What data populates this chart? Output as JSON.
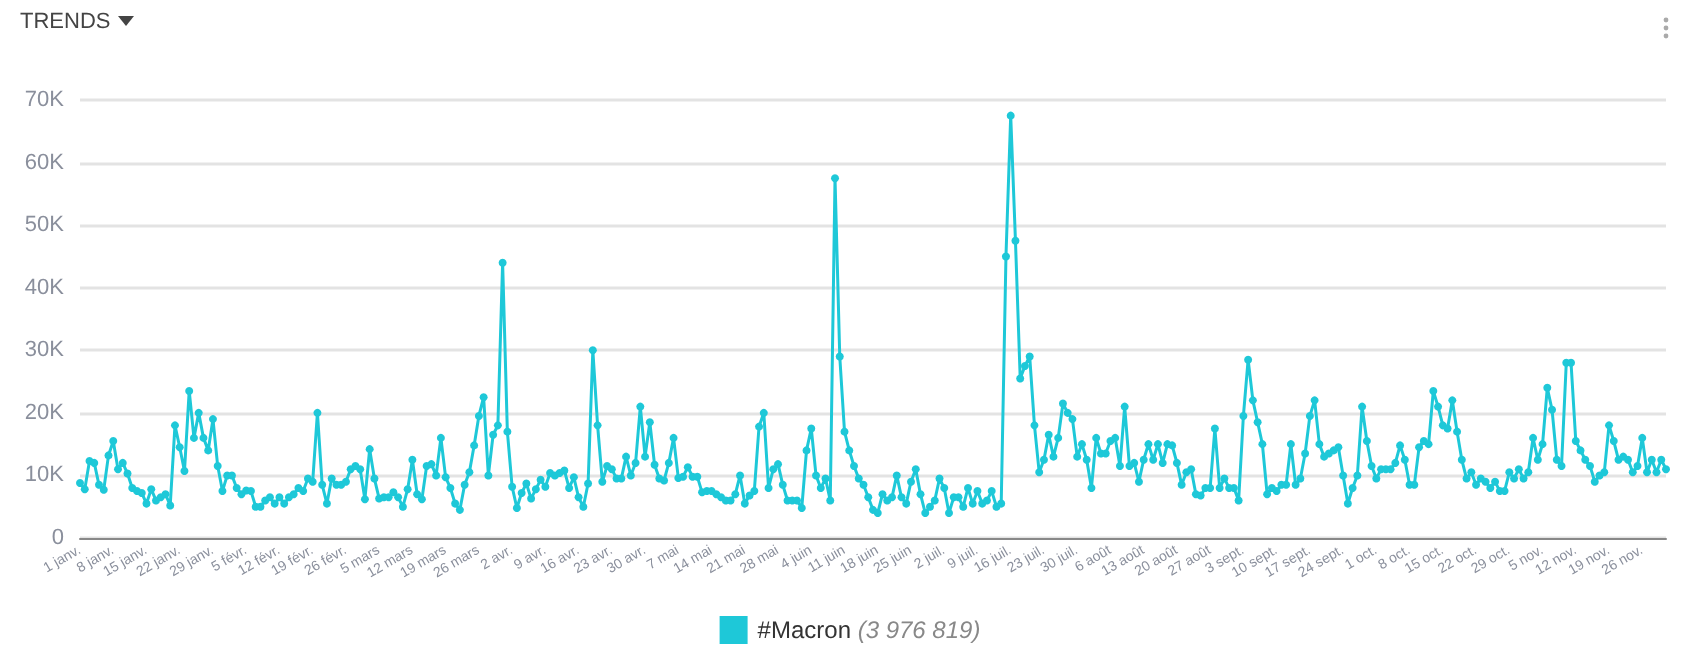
{
  "chart_data": {
    "type": "line",
    "title": "TRENDS",
    "categories": [
      "1 janv.",
      null,
      null,
      null,
      null,
      null,
      null,
      "8 janv.",
      null,
      null,
      null,
      null,
      null,
      null,
      "15 janv.",
      null,
      null,
      null,
      null,
      null,
      null,
      "22 janv.",
      null,
      null,
      null,
      null,
      null,
      null,
      "29 janv.",
      null,
      null,
      null,
      null,
      null,
      null,
      "5 févr.",
      null,
      null,
      null,
      null,
      null,
      null,
      "12 févr.",
      null,
      null,
      null,
      null,
      null,
      null,
      "19 févr.",
      null,
      null,
      null,
      null,
      null,
      null,
      "26 févr.",
      null,
      null,
      null,
      null,
      null,
      null,
      "5 mars",
      null,
      null,
      null,
      null,
      null,
      null,
      "12 mars",
      null,
      null,
      null,
      null,
      null,
      null,
      "19 mars",
      null,
      null,
      null,
      null,
      null,
      null,
      "26 mars",
      null,
      null,
      null,
      null,
      null,
      null,
      "2 avr.",
      null,
      null,
      null,
      null,
      null,
      null,
      "9 avr.",
      null,
      null,
      null,
      null,
      null,
      null,
      "16 avr.",
      null,
      null,
      null,
      null,
      null,
      null,
      "23 avr.",
      null,
      null,
      null,
      null,
      null,
      null,
      "30 avr.",
      null,
      null,
      null,
      null,
      null,
      null,
      "7 mai",
      null,
      null,
      null,
      null,
      null,
      null,
      "14 mai",
      null,
      null,
      null,
      null,
      null,
      null,
      "21 mai",
      null,
      null,
      null,
      null,
      null,
      null,
      "28 mai",
      null,
      null,
      null,
      null,
      null,
      null,
      "4 juin",
      null,
      null,
      null,
      null,
      null,
      null,
      "11 juin",
      null,
      null,
      null,
      null,
      null,
      null,
      "18 juin",
      null,
      null,
      null,
      null,
      null,
      null,
      "25 juin",
      null,
      null,
      null,
      null,
      null,
      null,
      "2 juil.",
      null,
      null,
      null,
      null,
      null,
      null,
      "9 juil.",
      null,
      null,
      null,
      null,
      null,
      null,
      "16 juil.",
      null,
      null,
      null,
      null,
      null,
      null,
      "23 juil.",
      null,
      null,
      null,
      null,
      null,
      null,
      "30 juil.",
      null,
      null,
      null,
      null,
      null,
      null,
      "6 août",
      null,
      null,
      null,
      null,
      null,
      null,
      "13 août",
      null,
      null,
      null,
      null,
      null,
      null,
      "20 août",
      null,
      null,
      null,
      null,
      null,
      null,
      "27 août",
      null,
      null,
      null,
      null,
      null,
      null,
      "3 sept.",
      null,
      null,
      null,
      null,
      null,
      null,
      "10 sept.",
      null,
      null,
      null,
      null,
      null,
      null,
      "17 sept.",
      null,
      null,
      null,
      null,
      null,
      null,
      "24 sept.",
      null,
      null,
      null,
      null,
      null,
      null,
      "1 oct.",
      null,
      null,
      null,
      null,
      null,
      null,
      "8 oct.",
      null,
      null,
      null,
      null,
      null,
      null,
      "15 oct.",
      null,
      null,
      null,
      null,
      null,
      null,
      "22 oct.",
      null,
      null,
      null,
      null,
      null,
      null,
      "29 oct.",
      null,
      null,
      null,
      null,
      null,
      null,
      "5 nov.",
      null,
      null,
      null,
      null,
      null,
      null,
      "12 nov.",
      null,
      null,
      null,
      null,
      null,
      null,
      "19 nov.",
      null,
      null,
      null,
      null,
      null,
      null,
      "26 nov.",
      null,
      null,
      null,
      null,
      null
    ],
    "series": [
      {
        "name": "#Macron",
        "color": "#1ec8d8",
        "values": [
          8800,
          7800,
          12300,
          12000,
          8500,
          7700,
          13200,
          15500,
          11000,
          12000,
          10300,
          8000,
          7500,
          7200,
          5500,
          7800,
          6000,
          6500,
          7000,
          5200,
          18000,
          14500,
          10700,
          23500,
          16000,
          20000,
          16000,
          14000,
          19000,
          11500,
          7500,
          10000,
          10000,
          8000,
          7000,
          7600,
          7500,
          5000,
          5000,
          6000,
          6500,
          5500,
          6500,
          5500,
          6500,
          7000,
          8000,
          7500,
          9500,
          9000,
          20000,
          8500,
          5500,
          9500,
          8500,
          8500,
          9000,
          11000,
          11500,
          11000,
          6200,
          14200,
          9500,
          6300,
          6500,
          6500,
          7300,
          6500,
          5000,
          7800,
          12500,
          7000,
          6200,
          11500,
          11800,
          10000,
          16000,
          9700,
          8000,
          5500,
          4500,
          8500,
          10500,
          14800,
          19500,
          22500,
          10000,
          16500,
          18000,
          44000,
          17000,
          8200,
          4800,
          7200,
          8700,
          6300,
          7800,
          9300,
          8200,
          10400,
          10000,
          10400,
          10800,
          8000,
          9700,
          6500,
          5000,
          8700,
          30000,
          18000,
          9000,
          11500,
          11000,
          9500,
          9500,
          13000,
          10000,
          12000,
          21000,
          13000,
          18500,
          11700,
          9500,
          9200,
          12000,
          16000,
          9600,
          9800,
          11300,
          9800,
          9800,
          7300,
          7500,
          7500,
          7000,
          6500,
          6000,
          6000,
          7000,
          10000,
          5500,
          6800,
          7500,
          17800,
          20000,
          8000,
          11000,
          11800,
          8500,
          6000,
          6000,
          6000,
          4800,
          14000,
          17500,
          10000,
          8000,
          9500,
          6000,
          57500,
          29000,
          17000,
          14000,
          11500,
          9500,
          8500,
          6500,
          4500,
          4000,
          7000,
          6000,
          6500,
          10000,
          6500,
          5500,
          9000,
          11000,
          7000,
          4000,
          5000,
          6000,
          9500,
          8000,
          4000,
          6500,
          6500,
          5000,
          8000,
          5500,
          7500,
          5500,
          6000,
          7500,
          5000,
          5500,
          45000,
          67500,
          47500,
          25500,
          27500,
          29000,
          18000,
          10500,
          12500,
          16500,
          13000,
          16000,
          21500,
          20000,
          19000,
          13000,
          15000,
          12500,
          8000,
          16000,
          13500,
          13500,
          15500,
          16000,
          11500,
          21000,
          11500,
          12000,
          9000,
          12500,
          15000,
          12500,
          15000,
          12000,
          15000,
          14800,
          12000,
          8500,
          10500,
          11000,
          7000,
          6800,
          8000,
          8000,
          17500,
          8000,
          9500,
          8000,
          8000,
          6000,
          19500,
          28500,
          22000,
          18500,
          15000,
          7000,
          8000,
          7500,
          8500,
          8500,
          15000,
          8500,
          9500,
          13500,
          19500,
          22000,
          15000,
          13000,
          13500,
          14000,
          14500,
          10000,
          5500,
          8000,
          10000,
          21000,
          15500,
          11500,
          9500,
          11000,
          11000,
          11000,
          12000,
          14800,
          12500,
          8500,
          8500,
          14500,
          15500,
          15000,
          23500,
          21000,
          18000,
          17500,
          22000,
          17000,
          12500,
          9500,
          10500,
          8500,
          9500,
          9000,
          8000,
          9000,
          7500,
          7500,
          10500,
          9500,
          11000,
          9500,
          10500,
          16000,
          12500,
          15000,
          24000,
          20500,
          12500,
          11500,
          28000,
          28000,
          15500,
          14000,
          12500,
          11500,
          9000,
          10000,
          10500,
          18000,
          15500,
          12500,
          13000,
          12500,
          10500,
          11500,
          16000,
          10500,
          12500,
          10500,
          12500,
          11000
        ]
      }
    ],
    "annotations": [
      "(3 976 819)"
    ],
    "ylim": [
      0,
      70000
    ],
    "yticks": [
      0,
      {
        "value": 10000,
        "label": "10K"
      },
      {
        "value": 20000,
        "label": "20K"
      },
      {
        "value": 30000,
        "label": "30K"
      },
      {
        "value": 40000,
        "label": "40K"
      },
      {
        "value": 50000,
        "label": "50K"
      },
      {
        "value": 60000,
        "label": "60K"
      },
      {
        "value": 70000,
        "label": "70K"
      }
    ],
    "grid": "y",
    "legend": "bottom",
    "marker": "circle",
    "line_style": "solid"
  }
}
